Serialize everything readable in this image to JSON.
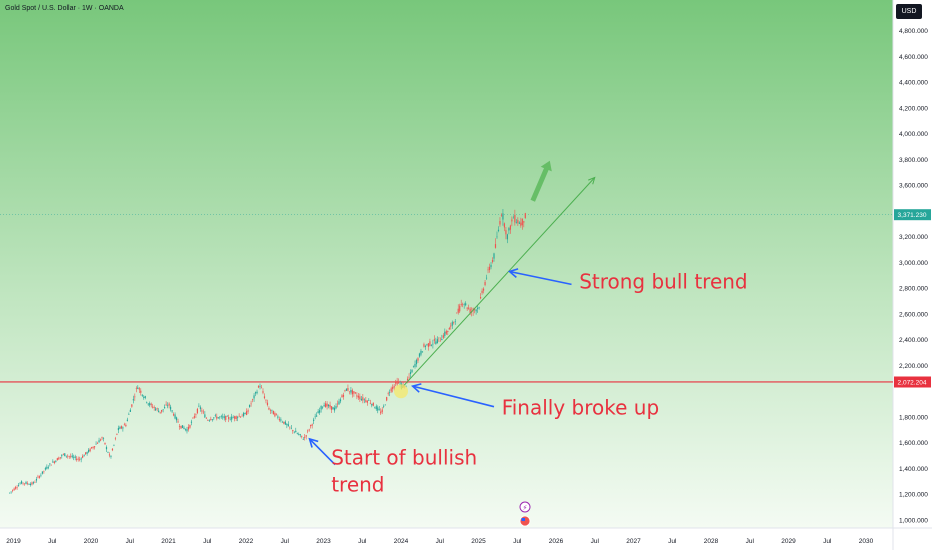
{
  "header": {
    "title": "Gold Spot / U.S. Dollar · 1W · OANDA",
    "unit_button": "USD"
  },
  "colors": {
    "bg_top": "#7cc97f",
    "bg_bottom": "#f4fbf3",
    "up_candle": "#26a69a",
    "down_candle": "#ef5350",
    "resistance": "#e8313f",
    "trendline": "#4caf50",
    "arrow_blue": "#2962ff",
    "annotation_text": "#e8313f",
    "price_tag": "#26a69a"
  },
  "chart_data": {
    "type": "candlestick",
    "y_ticks": [
      "4,800.000",
      "4,600.000",
      "4,400.000",
      "4,200.000",
      "4,000.000",
      "3,800.000",
      "3,600.000",
      "3,200.000",
      "3,000.000",
      "2,800.000",
      "2,600.000",
      "2,400.000",
      "2,200.000",
      "1,800.000",
      "1,600.000",
      "1,400.000",
      "1,200.000",
      "1,000.000"
    ],
    "y_tick_values": [
      4800,
      4600,
      4400,
      4200,
      4000,
      3800,
      3600,
      3200,
      3000,
      2800,
      2600,
      2400,
      2200,
      1800,
      1600,
      1400,
      1200,
      1000
    ],
    "ylim": [
      960,
      4900
    ],
    "x_ticks": [
      "2019",
      "Jul",
      "2020",
      "Jul",
      "2021",
      "Jul",
      "2022",
      "Jul",
      "2023",
      "Jul",
      "2024",
      "Jul",
      "2025",
      "Jul",
      "2026",
      "Jul",
      "2027",
      "Jul",
      "2028",
      "Jul",
      "2029",
      "Jul",
      "2030"
    ],
    "x_tick_dates": [
      2019.0,
      2019.5,
      2020.0,
      2020.5,
      2021.0,
      2021.5,
      2022.0,
      2022.5,
      2023.0,
      2023.5,
      2024.0,
      2024.5,
      2025.0,
      2025.5,
      2026.0,
      2026.5,
      2027.0,
      2027.5,
      2028.0,
      2028.5,
      2029.0,
      2029.5,
      2030.0
    ],
    "price_path": [
      [
        2018.95,
        1210
      ],
      [
        2019.1,
        1290
      ],
      [
        2019.25,
        1280
      ],
      [
        2019.45,
        1420
      ],
      [
        2019.65,
        1510
      ],
      [
        2019.85,
        1470
      ],
      [
        2020.0,
        1550
      ],
      [
        2020.15,
        1640
      ],
      [
        2020.25,
        1480
      ],
      [
        2020.35,
        1700
      ],
      [
        2020.45,
        1740
      ],
      [
        2020.6,
        2040
      ],
      [
        2020.75,
        1900
      ],
      [
        2020.9,
        1840
      ],
      [
        2021.0,
        1900
      ],
      [
        2021.15,
        1730
      ],
      [
        2021.25,
        1700
      ],
      [
        2021.4,
        1880
      ],
      [
        2021.5,
        1780
      ],
      [
        2021.6,
        1800
      ],
      [
        2021.8,
        1790
      ],
      [
        2022.0,
        1820
      ],
      [
        2022.18,
        2050
      ],
      [
        2022.3,
        1860
      ],
      [
        2022.45,
        1780
      ],
      [
        2022.6,
        1700
      ],
      [
        2022.75,
        1630
      ],
      [
        2022.9,
        1800
      ],
      [
        2023.0,
        1900
      ],
      [
        2023.15,
        1860
      ],
      [
        2023.3,
        2020
      ],
      [
        2023.5,
        1940
      ],
      [
        2023.6,
        1920
      ],
      [
        2023.75,
        1830
      ],
      [
        2023.85,
        2000
      ],
      [
        2023.95,
        2070
      ],
      [
        2024.05,
        2030
      ],
      [
        2024.15,
        2170
      ],
      [
        2024.3,
        2350
      ],
      [
        2024.5,
        2400
      ],
      [
        2024.65,
        2500
      ],
      [
        2024.8,
        2700
      ],
      [
        2024.9,
        2620
      ],
      [
        2025.0,
        2650
      ],
      [
        2025.1,
        2880
      ],
      [
        2025.2,
        3050
      ],
      [
        2025.3,
        3400
      ],
      [
        2025.37,
        3200
      ],
      [
        2025.45,
        3350
      ],
      [
        2025.55,
        3300
      ],
      [
        2025.62,
        3371
      ]
    ],
    "resistance_level": 2072.204,
    "resistance_label": "2,072.204",
    "last_price": 3371.23,
    "last_price_label": "3,371.230",
    "trendline": {
      "x": [
        2024.0,
        2026.5
      ],
      "y": [
        2020,
        3660
      ]
    },
    "projection_arrow": {
      "x": [
        2025.7,
        2025.92
      ],
      "y": [
        3480,
        3790
      ]
    },
    "annotations": [
      {
        "text": "Strong bull trend",
        "x": 2026.3,
        "y": 2800,
        "arrow_from": {
          "x": 2026.2,
          "y": 2830
        },
        "arrow_to": {
          "x": 2025.4,
          "y": 2930
        }
      },
      {
        "text": "Finally broke up",
        "x": 2025.3,
        "y": 1820,
        "arrow_from": {
          "x": 2025.2,
          "y": 1880
        },
        "arrow_to": {
          "x": 2024.15,
          "y": 2040
        }
      },
      {
        "text": "Start of bullish",
        "text2": "trend",
        "x": 2023.1,
        "y": 1430,
        "arrow_from": {
          "x": 2023.15,
          "y": 1430
        },
        "arrow_to": {
          "x": 2022.82,
          "y": 1630
        }
      }
    ],
    "grid": false
  }
}
